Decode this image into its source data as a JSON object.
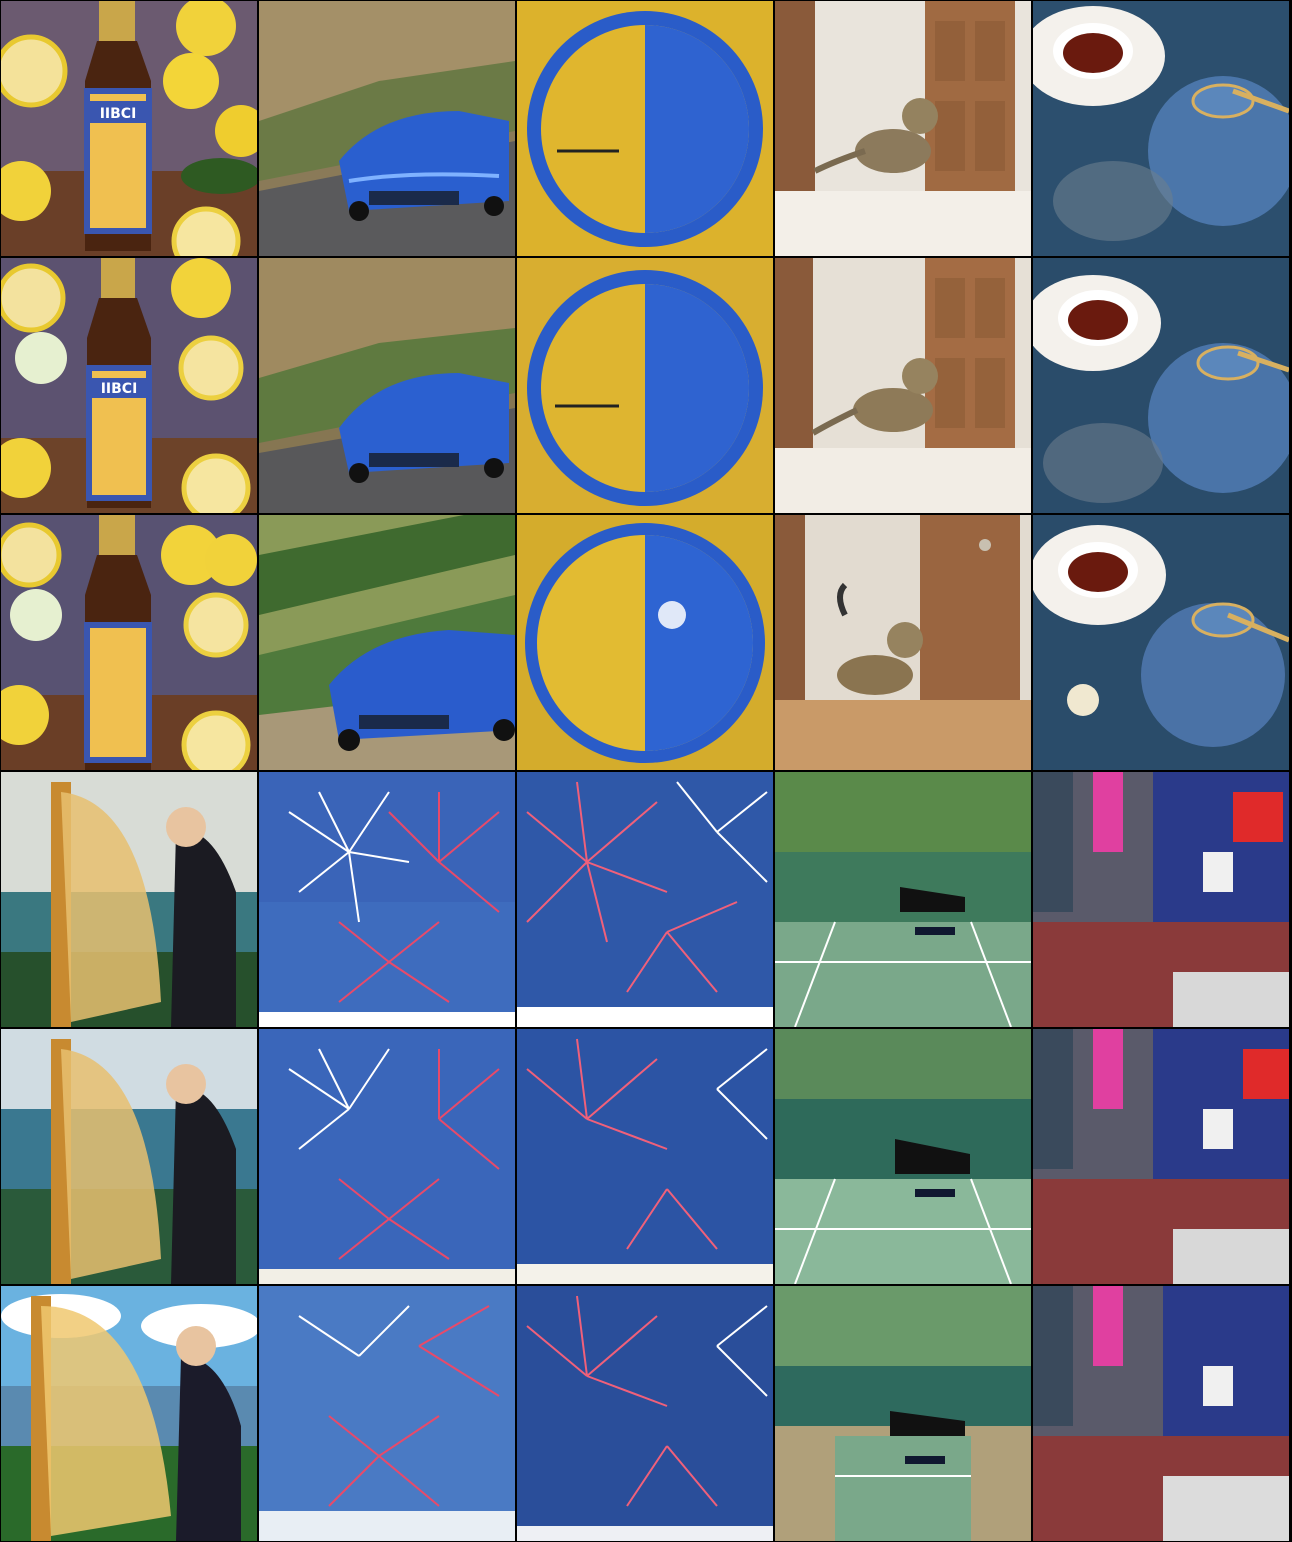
{
  "grid": {
    "rows": 6,
    "columns": 5,
    "cells": [
      {
        "subject": "beer-bottle-lemons",
        "label_text": "IIBCI",
        "variant": 1
      },
      {
        "subject": "blue-convertible-mountain-road",
        "variant": 1
      },
      {
        "subject": "blue-yellow-circle-logo",
        "variant": 1
      },
      {
        "subject": "tabby-cat-doorway",
        "variant": 1
      },
      {
        "subject": "blue-teapot-teacup",
        "variant": 1
      },
      {
        "subject": "beer-bottle-lemons",
        "label_text": "IIBCI",
        "variant": 2
      },
      {
        "subject": "blue-convertible-mountain-road",
        "variant": 2
      },
      {
        "subject": "blue-yellow-circle-logo",
        "variant": 2
      },
      {
        "subject": "tabby-cat-doorway",
        "variant": 2
      },
      {
        "subject": "blue-teapot-teacup",
        "variant": 2
      },
      {
        "subject": "beer-bottle-lemons",
        "variant": 3
      },
      {
        "subject": "blue-convertible-mountain-road",
        "variant": 3
      },
      {
        "subject": "blue-yellow-circle-logo",
        "variant": 3
      },
      {
        "subject": "tabby-cat-doorway",
        "variant": 3
      },
      {
        "subject": "blue-teapot-teacup",
        "variant": 3
      },
      {
        "subject": "harpist",
        "variant": 1
      },
      {
        "subject": "fireworks-white-red",
        "variant": 1
      },
      {
        "subject": "fireworks-red-blue",
        "variant": 1
      },
      {
        "subject": "grand-piano-tennis-court",
        "variant": 1
      },
      {
        "subject": "times-square-traffic",
        "variant": 1
      },
      {
        "subject": "harpist",
        "variant": 2
      },
      {
        "subject": "fireworks-white-red",
        "variant": 2
      },
      {
        "subject": "fireworks-red-blue",
        "variant": 2
      },
      {
        "subject": "grand-piano-tennis-court",
        "variant": 2
      },
      {
        "subject": "times-square-traffic",
        "variant": 2
      },
      {
        "subject": "harpist",
        "variant": 3
      },
      {
        "subject": "fireworks-white-red",
        "variant": 3
      },
      {
        "subject": "fireworks-red-blue",
        "variant": 3
      },
      {
        "subject": "grand-piano-tennis-court",
        "variant": 3
      },
      {
        "subject": "times-square-traffic",
        "variant": 3
      }
    ]
  }
}
